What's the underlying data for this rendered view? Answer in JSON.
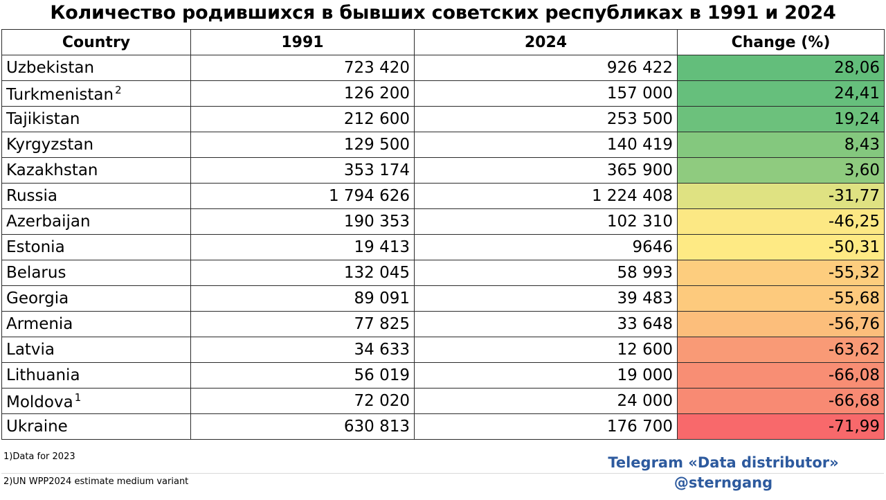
{
  "title": "Количество родившихся в бывших советских республиках в 1991 и 2024",
  "table": {
    "headers": [
      "Country",
      "1991",
      "2024",
      "Change (%)"
    ],
    "rows": [
      {
        "country": "Uzbekistan",
        "sup": "",
        "y1991": "723 420",
        "y2024": "926 422",
        "change": "28,06",
        "color": "#63be7b"
      },
      {
        "country": "Turkmenistan",
        "sup": "2",
        "y1991": "126 200",
        "y2024": "157 000",
        "change": "24,41",
        "color": "#66bf7c"
      },
      {
        "country": "Tajikistan",
        "sup": "",
        "y1991": "212 600",
        "y2024": "253 500",
        "change": "19,24",
        "color": "#6cc17c"
      },
      {
        "country": "Kyrgyzstan",
        "sup": "",
        "y1991": "129 500",
        "y2024": "140 419",
        "change": "8,43",
        "color": "#84c87e"
      },
      {
        "country": "Kazakhstan",
        "sup": "",
        "y1991": "353 174",
        "y2024": "365 900",
        "change": "3,60",
        "color": "#8fcb7f"
      },
      {
        "country": "Russia",
        "sup": "",
        "y1991": "1 794 626",
        "y2024": "1 224 408",
        "change": "-31,77",
        "color": "#dfe282"
      },
      {
        "country": "Azerbaijan",
        "sup": "",
        "y1991": "190 353",
        "y2024": "102 310",
        "change": "-46,25",
        "color": "#fce884"
      },
      {
        "country": "Estonia",
        "sup": "",
        "y1991": "19 413",
        "y2024": "9646",
        "change": "-50,31",
        "color": "#feea84"
      },
      {
        "country": "Belarus",
        "sup": "",
        "y1991": "132 045",
        "y2024": "58 993",
        "change": "-55,32",
        "color": "#fdcd7e"
      },
      {
        "country": "Georgia",
        "sup": "",
        "y1991": "89 091",
        "y2024": "39 483",
        "change": "-55,68",
        "color": "#fdca7d"
      },
      {
        "country": "Armenia",
        "sup": "",
        "y1991": "77 825",
        "y2024": "33 648",
        "change": "-56,76",
        "color": "#fcbe7b"
      },
      {
        "country": "Latvia",
        "sup": "",
        "y1991": "34 633",
        "y2024": "12 600",
        "change": "-63,62",
        "color": "#f99a76"
      },
      {
        "country": "Lithuania",
        "sup": "",
        "y1991": "56 019",
        "y2024": "19 000",
        "change": "-66,08",
        "color": "#f88e74"
      },
      {
        "country": "Moldova",
        "sup": "1",
        "y1991": "72 020",
        "y2024": "24 000",
        "change": "-66,68",
        "color": "#f88a73"
      },
      {
        "country": "Ukraine",
        "sup": "",
        "y1991": "630 813",
        "y2024": "176 700",
        "change": "-71,99",
        "color": "#f8696b"
      }
    ]
  },
  "notes": {
    "note1": "1)Data for 2023",
    "note2": "2)UN WPP2024 estimate medium variant"
  },
  "credit": {
    "line1": "Telegram «Data distributor»",
    "line2": "@sterngang",
    "color": "#2d5a9e"
  }
}
